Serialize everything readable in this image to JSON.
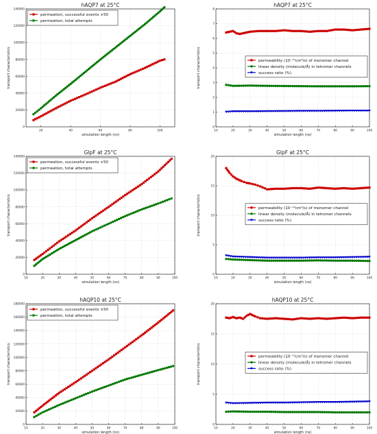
{
  "chart_data": [
    {
      "type": "line",
      "title": "hAQP7 at 25°C",
      "xlabel": "simulation length (ns)",
      "ylabel": "transport characteristics",
      "xlim": [
        10,
        110
      ],
      "ylim": [
        0,
        140000
      ],
      "xticks": [
        "20",
        "40",
        "60",
        "80",
        "100"
      ],
      "yticks": [
        "0",
        "20000",
        "40000",
        "60000",
        "80000",
        "100000",
        "120000",
        "140000"
      ],
      "legend_position": "top-left",
      "series": [
        {
          "name": "permeation, successful events ×50",
          "color": "#cc0000",
          "marker": "square",
          "x": [
            15,
            20,
            30,
            40,
            50,
            60,
            70,
            80,
            90,
            100,
            103
          ],
          "y": [
            8000,
            12500,
            22000,
            31000,
            38500,
            46500,
            53500,
            62500,
            70000,
            78500,
            80000
          ]
        },
        {
          "name": "permeation, total attempts",
          "color": "#007700",
          "marker": "circle",
          "x": [
            15,
            20,
            30,
            40,
            50,
            60,
            70,
            80,
            90,
            100,
            103
          ],
          "y": [
            15000,
            22000,
            37000,
            51000,
            65500,
            80000,
            94000,
            108000,
            122000,
            137000,
            142000
          ]
        }
      ]
    },
    {
      "type": "line",
      "title": "hAQP7 at 25°C",
      "xlabel": "simulation length (ns)",
      "ylabel": "transport characteristics",
      "xlim": [
        10,
        100
      ],
      "ylim": [
        0,
        8
      ],
      "xticks": [
        "10",
        "20",
        "30",
        "40",
        "50",
        "60",
        "70",
        "80",
        "90",
        "100"
      ],
      "yticks": [
        "0",
        "1",
        "2",
        "3",
        "4",
        "5",
        "6",
        "7",
        "8"
      ],
      "legend_position": "center-right",
      "series": [
        {
          "name": "permeability (10⁻¹³cm³/s) of monomer channel",
          "color": "#cc0000",
          "marker": "square",
          "x": [
            16,
            18,
            20,
            22,
            24,
            26,
            28,
            30,
            35,
            40,
            45,
            50,
            55,
            60,
            65,
            70,
            75,
            80,
            85,
            90,
            95,
            100
          ],
          "y": [
            6.4,
            6.45,
            6.5,
            6.35,
            6.3,
            6.35,
            6.4,
            6.45,
            6.5,
            6.5,
            6.5,
            6.55,
            6.5,
            6.5,
            6.45,
            6.5,
            6.5,
            6.6,
            6.6,
            6.55,
            6.6,
            6.65
          ]
        },
        {
          "name": "linear density (molecule/Å) in tetromer channels",
          "color": "#007700",
          "marker": "circle",
          "x": [
            16,
            20,
            30,
            40,
            50,
            60,
            70,
            80,
            90,
            100
          ],
          "y": [
            2.85,
            2.78,
            2.8,
            2.78,
            2.77,
            2.76,
            2.75,
            2.75,
            2.75,
            2.76
          ]
        },
        {
          "name": "success ratio (%)",
          "color": "#0000cc",
          "marker": "triangle",
          "x": [
            16,
            20,
            30,
            40,
            50,
            60,
            70,
            80,
            90,
            100
          ],
          "y": [
            1.02,
            1.05,
            1.05,
            1.06,
            1.07,
            1.08,
            1.08,
            1.09,
            1.1,
            1.1
          ]
        }
      ]
    },
    {
      "type": "line",
      "title": "GlpF at 25°C",
      "xlabel": "simulation length (ns)",
      "ylabel": "transport characteristics",
      "xlim": [
        10,
        100
      ],
      "ylim": [
        0,
        140000
      ],
      "xticks": [
        "10",
        "20",
        "30",
        "40",
        "50",
        "60",
        "70",
        "80",
        "90",
        "100"
      ],
      "yticks": [
        "0",
        "20000",
        "40000",
        "60000",
        "80000",
        "100000",
        "120000",
        "140000"
      ],
      "legend_position": "top-left",
      "series": [
        {
          "name": "permeation, successful events ×50",
          "color": "#cc0000",
          "marker": "square",
          "x": [
            15,
            20,
            30,
            40,
            50,
            60,
            70,
            80,
            90,
            98
          ],
          "y": [
            17000,
            24000,
            39000,
            52000,
            66500,
            80000,
            94000,
            107000,
            122000,
            137000
          ]
        },
        {
          "name": "permeation, total attempts",
          "color": "#007700",
          "marker": "circle",
          "x": [
            15,
            20,
            30,
            40,
            50,
            60,
            70,
            80,
            90,
            98
          ],
          "y": [
            10000,
            18000,
            30000,
            40500,
            51000,
            60000,
            69000,
            77000,
            84000,
            90000
          ]
        }
      ]
    },
    {
      "type": "line",
      "title": "GlpF at 25°C",
      "xlabel": "simulation length (ns)",
      "ylabel": "transport characteristics",
      "xlim": [
        10,
        100
      ],
      "ylim": [
        0,
        20
      ],
      "xticks": [
        "10",
        "20",
        "30",
        "40",
        "50",
        "60",
        "70",
        "80",
        "90",
        "100"
      ],
      "yticks": [
        "0",
        "5",
        "10",
        "15",
        "20"
      ],
      "legend_position": "center-right",
      "series": [
        {
          "name": "permeability (10⁻¹³cm³/s) of monomer channel",
          "color": "#cc0000",
          "marker": "square",
          "x": [
            16,
            18,
            20,
            22,
            25,
            28,
            30,
            33,
            36,
            40,
            45,
            50,
            55,
            60,
            65,
            70,
            75,
            80,
            85,
            90,
            95,
            100
          ],
          "y": [
            18.0,
            17.2,
            16.6,
            16.2,
            15.8,
            15.5,
            15.4,
            15.2,
            14.9,
            14.4,
            14.5,
            14.5,
            14.6,
            14.6,
            14.5,
            14.7,
            14.6,
            14.5,
            14.6,
            14.5,
            14.6,
            14.7
          ]
        },
        {
          "name": "linear density (molecule/Å) in tetromer channels",
          "color": "#007700",
          "marker": "circle",
          "x": [
            16,
            20,
            30,
            40,
            50,
            60,
            70,
            80,
            90,
            100
          ],
          "y": [
            2.6,
            2.5,
            2.4,
            2.3,
            2.3,
            2.3,
            2.35,
            2.3,
            2.3,
            2.25
          ]
        },
        {
          "name": "success ratio (%)",
          "color": "#0000cc",
          "marker": "triangle",
          "x": [
            16,
            20,
            30,
            40,
            50,
            60,
            70,
            80,
            90,
            100
          ],
          "y": [
            3.2,
            3.0,
            2.9,
            2.8,
            2.8,
            2.8,
            2.85,
            2.85,
            2.9,
            2.95
          ]
        }
      ]
    },
    {
      "type": "line",
      "title": "hAQP10 at 25°C",
      "xlabel": "simulation length (ns)",
      "ylabel": "transport characteristics",
      "xlim": [
        10,
        100
      ],
      "ylim": [
        0,
        180000
      ],
      "xticks": [
        "10",
        "20",
        "30",
        "40",
        "50",
        "60",
        "70",
        "80",
        "90",
        "100"
      ],
      "yticks": [
        "0",
        "20000",
        "40000",
        "60000",
        "80000",
        "100000",
        "120000",
        "140000",
        "160000",
        "180000"
      ],
      "legend_position": "top-left",
      "series": [
        {
          "name": "permeation, successful events ×50",
          "color": "#cc0000",
          "marker": "square",
          "x": [
            15,
            20,
            30,
            40,
            50,
            60,
            70,
            80,
            90,
            99
          ],
          "y": [
            18000,
            28000,
            47000,
            63000,
            80000,
            97000,
            115000,
            133000,
            152000,
            170000
          ]
        },
        {
          "name": "permeation, total attempts",
          "color": "#007700",
          "marker": "circle",
          "x": [
            15,
            20,
            30,
            40,
            50,
            60,
            70,
            80,
            90,
            99
          ],
          "y": [
            11000,
            18000,
            29000,
            39000,
            49000,
            58000,
            67000,
            74000,
            81000,
            87000
          ]
        }
      ]
    },
    {
      "type": "line",
      "title": "hAQP10 at 25°C",
      "xlabel": "simulation length (ns)",
      "ylabel": "transport characteristics",
      "xlim": [
        10,
        100
      ],
      "ylim": [
        0,
        20
      ],
      "xticks": [
        "10",
        "20",
        "30",
        "40",
        "50",
        "60",
        "70",
        "80",
        "90",
        "100"
      ],
      "yticks": [
        "0",
        "5",
        "10",
        "15",
        "20"
      ],
      "legend_position": "center-right",
      "series": [
        {
          "name": "permeability (10⁻¹³cm³/s) of monomer channel",
          "color": "#cc0000",
          "marker": "square",
          "x": [
            16,
            18,
            20,
            22,
            24,
            26,
            28,
            30,
            33,
            36,
            40,
            45,
            50,
            55,
            60,
            65,
            70,
            75,
            80,
            85,
            90,
            95,
            100
          ],
          "y": [
            17.7,
            17.6,
            17.8,
            17.6,
            17.7,
            17.5,
            18.0,
            18.3,
            17.9,
            17.6,
            17.5,
            17.6,
            17.5,
            17.4,
            17.6,
            17.5,
            17.6,
            17.5,
            17.6,
            17.7,
            17.6,
            17.7,
            17.7
          ]
        },
        {
          "name": "linear density (molecule/Å) in tetromer channels",
          "color": "#007700",
          "marker": "circle",
          "x": [
            16,
            20,
            30,
            40,
            50,
            60,
            70,
            80,
            90,
            100
          ],
          "y": [
            2.1,
            2.15,
            2.1,
            2.1,
            2.05,
            2.05,
            2.05,
            2.0,
            2.0,
            2.0
          ]
        },
        {
          "name": "success ratio (%)",
          "color": "#0000cc",
          "marker": "triangle",
          "x": [
            16,
            20,
            30,
            40,
            50,
            60,
            70,
            80,
            90,
            100
          ],
          "y": [
            3.6,
            3.5,
            3.55,
            3.6,
            3.6,
            3.65,
            3.7,
            3.7,
            3.75,
            3.8
          ]
        }
      ]
    }
  ]
}
